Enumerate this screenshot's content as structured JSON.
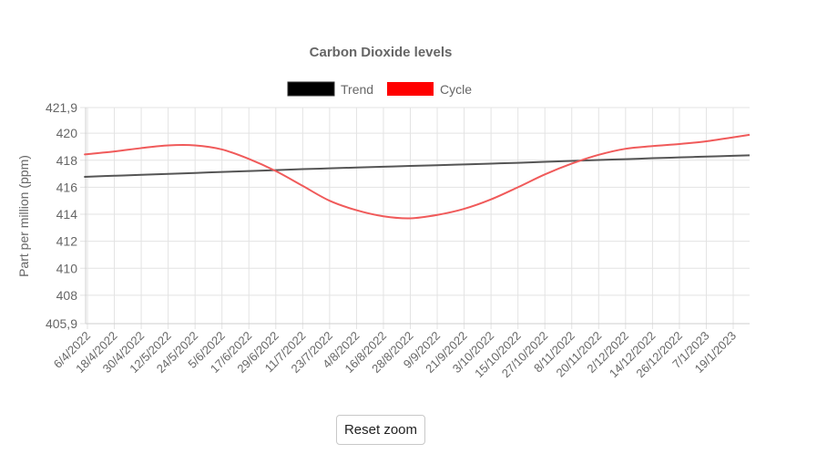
{
  "chart_data": {
    "type": "line",
    "title": "Carbon Dioxide levels",
    "ylabel": "Part per million (ppm)",
    "xlabel": "",
    "ylim": [
      405.9,
      421.9
    ],
    "ytick_labels": [
      "421,9",
      "420",
      "418",
      "416",
      "414",
      "412",
      "410",
      "408",
      "405,9"
    ],
    "ytick_values": [
      421.9,
      420,
      418,
      416,
      414,
      412,
      410,
      408,
      405.9
    ],
    "x_labels": [
      "6/4/2022",
      "18/4/2022",
      "30/4/2022",
      "12/5/2022",
      "24/5/2022",
      "5/6/2022",
      "17/6/2022",
      "29/6/2022",
      "11/7/2022",
      "23/7/2022",
      "4/8/2022",
      "16/8/2022",
      "28/8/2022",
      "9/9/2022",
      "21/9/2022",
      "3/10/2022",
      "15/10/2022",
      "27/10/2022",
      "8/11/2022",
      "20/11/2022",
      "2/12/2022",
      "14/12/2022",
      "26/12/2022",
      "7/1/2023",
      "19/1/2023"
    ],
    "legend_position": "top",
    "grid": true,
    "series": [
      {
        "name": "Trend",
        "color": "#000000",
        "line_color": "#555555",
        "values": [
          416.78,
          416.85,
          416.92,
          416.99,
          417.06,
          417.13,
          417.2,
          417.27,
          417.34,
          417.4,
          417.46,
          417.52,
          417.58,
          417.63,
          417.69,
          417.75,
          417.81,
          417.88,
          417.95,
          418.02,
          418.08,
          418.15,
          418.21,
          418.27,
          418.33
        ]
      },
      {
        "name": "Cycle",
        "color": "#ff0000",
        "line_color": "#f05a5a",
        "values": [
          418.45,
          418.65,
          418.9,
          419.1,
          419.1,
          418.8,
          418.1,
          417.2,
          416.1,
          415.0,
          414.3,
          413.85,
          413.7,
          413.95,
          414.4,
          415.1,
          416.0,
          416.95,
          417.75,
          418.4,
          418.85,
          419.05,
          419.2,
          419.4,
          419.7
        ]
      }
    ]
  },
  "controls": {
    "reset_zoom_label": "Reset zoom"
  }
}
